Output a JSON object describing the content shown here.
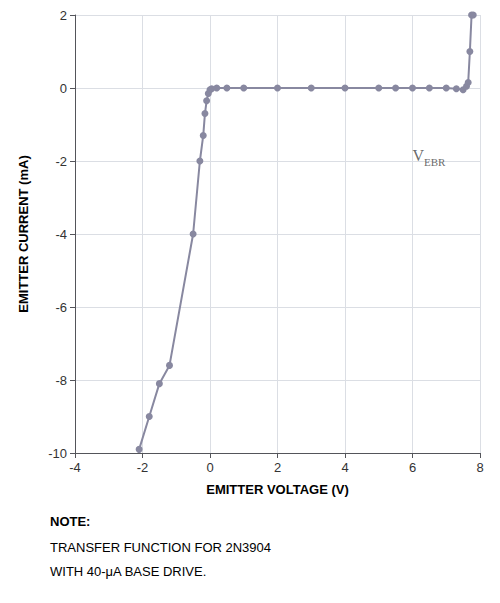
{
  "chart_data": {
    "type": "line",
    "x": [
      -2.1,
      -1.8,
      -1.5,
      -1.2,
      -0.5,
      -0.3,
      -0.2,
      -0.15,
      -0.1,
      -0.05,
      0.0,
      0.05,
      0.2,
      0.5,
      1.0,
      2.0,
      3.0,
      4.0,
      5.0,
      5.5,
      6.0,
      6.5,
      7.0,
      7.3,
      7.5,
      7.6,
      7.65,
      7.7,
      7.75,
      7.8
    ],
    "values": [
      -9.9,
      -9.0,
      -8.1,
      -7.6,
      -4.0,
      -2.0,
      -1.3,
      -0.7,
      -0.35,
      -0.15,
      -0.05,
      -0.02,
      0.0,
      0.0,
      0.0,
      0.0,
      0.0,
      0.0,
      0.0,
      0.0,
      0.0,
      0.0,
      0.0,
      -0.02,
      -0.05,
      0.05,
      0.15,
      1.0,
      2.0,
      2.0
    ],
    "color": "#8888a0",
    "marker": "circle",
    "xlim": [
      -4,
      8
    ],
    "ylim": [
      -10,
      2
    ],
    "xticks": [
      -4,
      -2,
      0,
      2,
      4,
      6,
      8
    ],
    "yticks": [
      -10,
      -8,
      -6,
      -4,
      -2,
      0,
      2
    ],
    "xlabel": "EMITTER VOLTAGE (V)",
    "ylabel": "EMITTER CURRENT (mA)",
    "grid": true,
    "annotations": [
      {
        "x": 6.0,
        "y": -1.8,
        "text": "V",
        "subscript": "EBR"
      }
    ],
    "note_title": "NOTE:",
    "notes": [
      "TRANSFER FUNCTION FOR 2N3904",
      "WITH 40-μA BASE DRIVE."
    ]
  }
}
